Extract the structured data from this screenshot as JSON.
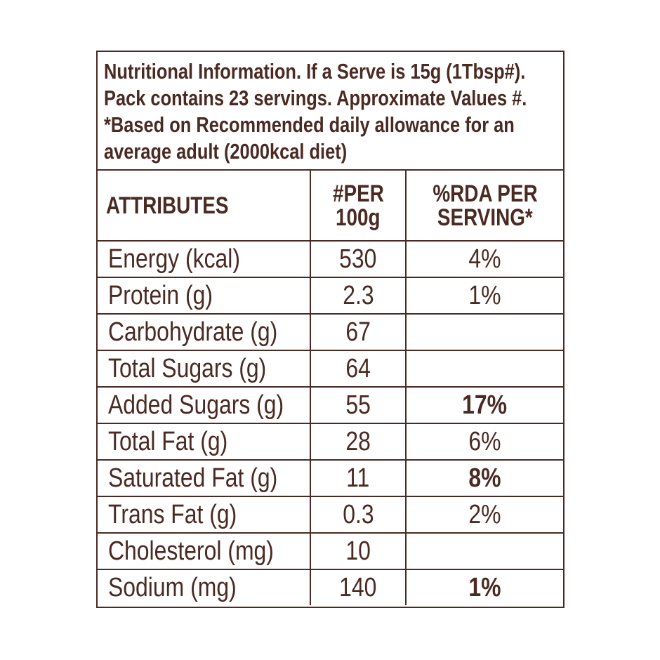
{
  "info": {
    "lines": [
      "Nutritional Information. If a Serve is 15g (1Tbsp#).",
      "Pack contains 23 servings. Approximate Values #.",
      "*Based on Recommended daily allowance for an",
      "average adult (2000kcal diet)"
    ]
  },
  "headers": {
    "attributes": "ATTRIBUTES",
    "per100_line1": "#PER",
    "per100_line2": "100g",
    "rda_line1": "%RDA PER",
    "rda_line2": "SERVING*"
  },
  "rows": [
    {
      "attribute": "Energy (kcal)",
      "per100g": "530",
      "rda": "4%",
      "rda_bold": false
    },
    {
      "attribute": "Protein (g)",
      "per100g": "2.3",
      "rda": "1%",
      "rda_bold": false
    },
    {
      "attribute": "Carbohydrate (g)",
      "per100g": "67",
      "rda": "",
      "rda_bold": false
    },
    {
      "attribute": "Total Sugars (g)",
      "per100g": "64",
      "rda": "",
      "rda_bold": false
    },
    {
      "attribute": "Added Sugars (g)",
      "per100g": "55",
      "rda": "17%",
      "rda_bold": true
    },
    {
      "attribute": "Total Fat (g)",
      "per100g": "28",
      "rda": "6%",
      "rda_bold": false
    },
    {
      "attribute": "Saturated Fat (g)",
      "per100g": "11",
      "rda": "8%",
      "rda_bold": true
    },
    {
      "attribute": "Trans Fat (g)",
      "per100g": "0.3",
      "rda": "2%",
      "rda_bold": false
    },
    {
      "attribute": "Cholesterol (mg)",
      "per100g": "10",
      "rda": "",
      "rda_bold": false
    },
    {
      "attribute": "Sodium (mg)",
      "per100g": "140",
      "rda": "1%",
      "rda_bold": true
    }
  ],
  "colors": {
    "text": "#4a2a22",
    "border": "#4a2a22",
    "background": "#ffffff"
  }
}
